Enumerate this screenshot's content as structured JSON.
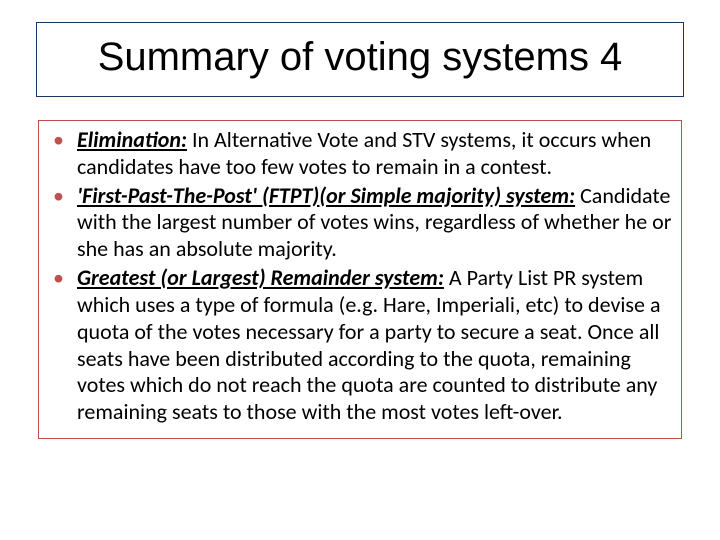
{
  "colors": {
    "title_border": "#17375e",
    "content_border": "#c0504d",
    "bullet_color": "#c0504d",
    "text_color": "#000000",
    "background": "#ffffff"
  },
  "typography": {
    "title_fontsize": 40,
    "body_fontsize": 22,
    "title_font": "Arial",
    "body_font": "Calibri"
  },
  "title": "Summary of voting systems 4",
  "bullets": [
    {
      "term": "Elimination:",
      "body": " In Alternative Vote and STV systems, it occurs when candidates have too few votes to remain in a contest."
    },
    {
      "term": "'First-Past-The-Post' (FTPT)(or Simple majority) system:",
      "body": " Candidate with the largest number of votes wins, regardless of whether he or she has an absolute majority."
    },
    {
      "term": "Greatest (or Largest) Remainder system:",
      "body": " A Party List PR system which uses a type of formula (e.g. Hare, Imperiali, etc) to devise a quota of the votes necessary for a party to secure a seat. Once all seats have been distributed according to the quota, remaining votes which do not reach the quota are counted to distribute any remaining seats to those with the most votes left-over."
    }
  ]
}
